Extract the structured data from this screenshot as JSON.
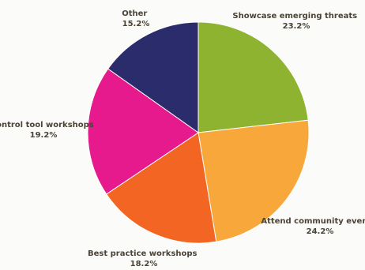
{
  "chart_data": {
    "type": "pie",
    "title": "",
    "start_angle_deg": 0,
    "direction": "clockwise",
    "slices": [
      {
        "label": "Showcase emerging threats",
        "value": 23.2,
        "value_label": "23.2%",
        "color": "#8db331"
      },
      {
        "label": "Attend community events",
        "value": 24.2,
        "value_label": "24.2%",
        "color": "#f8a73a"
      },
      {
        "label": "Best practice workshops",
        "value": 18.2,
        "value_label": "18.2%",
        "color": "#f26522"
      },
      {
        "label": "Control tool workshops",
        "value": 19.2,
        "value_label": "19.2%",
        "color": "#e6198d"
      },
      {
        "label": "Other",
        "value": 15.2,
        "value_label": "15.2%",
        "color": "#2b2c6b"
      }
    ]
  }
}
